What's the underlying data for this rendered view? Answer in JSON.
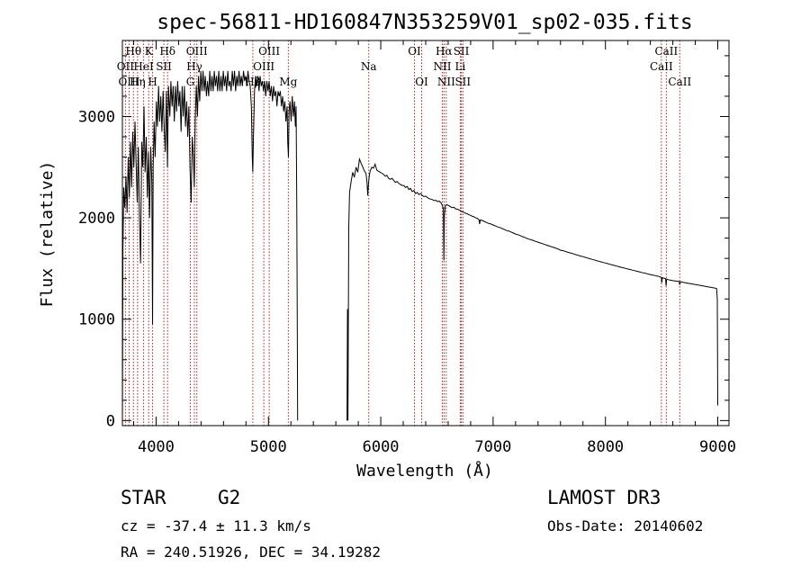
{
  "chart_data": {
    "type": "line",
    "title": "spec-56811-HD160847N353259V01_sp02-035.fits",
    "xlabel": "Wavelength (Å)",
    "ylabel": "Flux (relative)",
    "xlim": [
      3700,
      9100
    ],
    "ylim": [
      -50,
      3750
    ],
    "x_ticks": [
      4000,
      5000,
      6000,
      7000,
      8000,
      9000
    ],
    "y_ticks": [
      0,
      1000,
      2000,
      3000
    ],
    "line_color": "#000000",
    "marker_color": "#b22222",
    "gap": [
      5260,
      5700
    ],
    "spectrum": [
      [
        3700,
        0
      ],
      [
        3705,
        1700
      ],
      [
        3712,
        2300
      ],
      [
        3722,
        2100
      ],
      [
        3732,
        2400
      ],
      [
        3742,
        2050
      ],
      [
        3752,
        2600
      ],
      [
        3762,
        2200
      ],
      [
        3772,
        2750
      ],
      [
        3782,
        2300
      ],
      [
        3792,
        2850
      ],
      [
        3802,
        2500
      ],
      [
        3812,
        2950
      ],
      [
        3822,
        2550
      ],
      [
        3832,
        2150
      ],
      [
        3842,
        2700
      ],
      [
        3852,
        2000
      ],
      [
        3862,
        1550
      ],
      [
        3872,
        2750
      ],
      [
        3882,
        2500
      ],
      [
        3892,
        3100
      ],
      [
        3902,
        2450
      ],
      [
        3912,
        2800
      ],
      [
        3922,
        2200
      ],
      [
        3932,
        2650
      ],
      [
        3942,
        2000
      ],
      [
        3952,
        2700
      ],
      [
        3962,
        2350
      ],
      [
        3968,
        950
      ],
      [
        3974,
        2500
      ],
      [
        3982,
        2950
      ],
      [
        3992,
        2600
      ],
      [
        4002,
        3150
      ],
      [
        4012,
        2900
      ],
      [
        4022,
        3300
      ],
      [
        4032,
        2950
      ],
      [
        4042,
        3200
      ],
      [
        4052,
        2850
      ],
      [
        4062,
        3250
      ],
      [
        4072,
        2900
      ],
      [
        4082,
        2650
      ],
      [
        4092,
        3250
      ],
      [
        4101,
        2500
      ],
      [
        4110,
        3300
      ],
      [
        4122,
        3000
      ],
      [
        4132,
        3350
      ],
      [
        4142,
        3100
      ],
      [
        4152,
        3300
      ],
      [
        4162,
        2950
      ],
      [
        4172,
        3300
      ],
      [
        4182,
        3050
      ],
      [
        4192,
        3350
      ],
      [
        4202,
        3100
      ],
      [
        4212,
        3250
      ],
      [
        4222,
        2850
      ],
      [
        4232,
        3300
      ],
      [
        4242,
        3000
      ],
      [
        4252,
        3300
      ],
      [
        4262,
        2900
      ],
      [
        4272,
        3150
      ],
      [
        4282,
        2800
      ],
      [
        4292,
        3100
      ],
      [
        4302,
        2500
      ],
      [
        4312,
        2150
      ],
      [
        4322,
        2800
      ],
      [
        4332,
        2600
      ],
      [
        4340,
        2300
      ],
      [
        4348,
        2950
      ],
      [
        4358,
        3300
      ],
      [
        4368,
        3000
      ],
      [
        4378,
        3400
      ],
      [
        4388,
        3150
      ],
      [
        4398,
        3450
      ],
      [
        4408,
        3250
      ],
      [
        4418,
        3450
      ],
      [
        4428,
        3250
      ],
      [
        4438,
        3400
      ],
      [
        4448,
        3200
      ],
      [
        4458,
        3350
      ],
      [
        4468,
        3200
      ],
      [
        4478,
        3450
      ],
      [
        4488,
        3250
      ],
      [
        4498,
        3400
      ],
      [
        4508,
        3250
      ],
      [
        4518,
        3450
      ],
      [
        4528,
        3300
      ],
      [
        4538,
        3400
      ],
      [
        4548,
        3250
      ],
      [
        4558,
        3450
      ],
      [
        4568,
        3250
      ],
      [
        4578,
        3400
      ],
      [
        4588,
        3250
      ],
      [
        4598,
        3450
      ],
      [
        4608,
        3300
      ],
      [
        4618,
        3400
      ],
      [
        4628,
        3250
      ],
      [
        4638,
        3450
      ],
      [
        4648,
        3300
      ],
      [
        4658,
        3350
      ],
      [
        4668,
        3250
      ],
      [
        4678,
        3450
      ],
      [
        4688,
        3300
      ],
      [
        4698,
        3450
      ],
      [
        4708,
        3250
      ],
      [
        4718,
        3400
      ],
      [
        4728,
        3300
      ],
      [
        4738,
        3450
      ],
      [
        4748,
        3300
      ],
      [
        4758,
        3400
      ],
      [
        4768,
        3300
      ],
      [
        4778,
        3450
      ],
      [
        4788,
        3350
      ],
      [
        4798,
        3400
      ],
      [
        4808,
        3300
      ],
      [
        4818,
        3450
      ],
      [
        4828,
        3350
      ],
      [
        4838,
        3300
      ],
      [
        4848,
        3100
      ],
      [
        4856,
        2600
      ],
      [
        4861,
        2450
      ],
      [
        4866,
        2750
      ],
      [
        4876,
        3250
      ],
      [
        4886,
        3400
      ],
      [
        4896,
        3300
      ],
      [
        4906,
        3400
      ],
      [
        4916,
        3250
      ],
      [
        4926,
        3400
      ],
      [
        4936,
        3300
      ],
      [
        4946,
        3350
      ],
      [
        4956,
        3250
      ],
      [
        4966,
        3350
      ],
      [
        4976,
        3200
      ],
      [
        4986,
        3350
      ],
      [
        4996,
        3250
      ],
      [
        5006,
        3350
      ],
      [
        5016,
        3200
      ],
      [
        5026,
        3300
      ],
      [
        5036,
        3150
      ],
      [
        5046,
        3300
      ],
      [
        5056,
        3200
      ],
      [
        5066,
        3250
      ],
      [
        5076,
        3100
      ],
      [
        5086,
        3250
      ],
      [
        5096,
        3200
      ],
      [
        5106,
        3250
      ],
      [
        5116,
        3100
      ],
      [
        5126,
        3200
      ],
      [
        5136,
        3050
      ],
      [
        5146,
        3150
      ],
      [
        5156,
        2950
      ],
      [
        5166,
        3100
      ],
      [
        5172,
        2750
      ],
      [
        5178,
        2600
      ],
      [
        5184,
        3050
      ],
      [
        5192,
        3150
      ],
      [
        5202,
        2950
      ],
      [
        5212,
        3200
      ],
      [
        5222,
        3000
      ],
      [
        5232,
        3150
      ],
      [
        5240,
        2900
      ],
      [
        5246,
        3100
      ],
      [
        5252,
        2200
      ],
      [
        5256,
        1200
      ],
      [
        5260,
        0
      ],
      [
        5700,
        0
      ],
      [
        5704,
        1100
      ],
      [
        5708,
        0
      ],
      [
        5715,
        1900
      ],
      [
        5722,
        2250
      ],
      [
        5735,
        2350
      ],
      [
        5750,
        2450
      ],
      [
        5765,
        2400
      ],
      [
        5780,
        2500
      ],
      [
        5795,
        2450
      ],
      [
        5810,
        2580
      ],
      [
        5825,
        2540
      ],
      [
        5840,
        2500
      ],
      [
        5855,
        2460
      ],
      [
        5868,
        2440
      ],
      [
        5878,
        2350
      ],
      [
        5884,
        2220
      ],
      [
        5890,
        2320
      ],
      [
        5896,
        2400
      ],
      [
        5905,
        2460
      ],
      [
        5920,
        2500
      ],
      [
        5935,
        2490
      ],
      [
        5950,
        2530
      ],
      [
        5965,
        2470
      ],
      [
        5980,
        2460
      ],
      [
        5995,
        2450
      ],
      [
        6010,
        2440
      ],
      [
        6025,
        2430
      ],
      [
        6040,
        2410
      ],
      [
        6055,
        2420
      ],
      [
        6070,
        2390
      ],
      [
        6085,
        2380
      ],
      [
        6100,
        2390
      ],
      [
        6115,
        2370
      ],
      [
        6130,
        2350
      ],
      [
        6145,
        2360
      ],
      [
        6160,
        2340
      ],
      [
        6175,
        2330
      ],
      [
        6190,
        2320
      ],
      [
        6205,
        2320
      ],
      [
        6220,
        2300
      ],
      [
        6235,
        2310
      ],
      [
        6250,
        2280
      ],
      [
        6265,
        2290
      ],
      [
        6280,
        2260
      ],
      [
        6295,
        2270
      ],
      [
        6310,
        2240
      ],
      [
        6325,
        2250
      ],
      [
        6340,
        2230
      ],
      [
        6355,
        2240
      ],
      [
        6370,
        2220
      ],
      [
        6385,
        2210
      ],
      [
        6400,
        2215
      ],
      [
        6415,
        2200
      ],
      [
        6430,
        2190
      ],
      [
        6445,
        2185
      ],
      [
        6460,
        2180
      ],
      [
        6475,
        2170
      ],
      [
        6490,
        2175
      ],
      [
        6505,
        2160
      ],
      [
        6520,
        2165
      ],
      [
        6535,
        2150
      ],
      [
        6550,
        2120
      ],
      [
        6558,
        2080
      ],
      [
        6562,
        1580
      ],
      [
        6566,
        2020
      ],
      [
        6575,
        2120
      ],
      [
        6590,
        2130
      ],
      [
        6605,
        2120
      ],
      [
        6620,
        2110
      ],
      [
        6635,
        2100
      ],
      [
        6650,
        2105
      ],
      [
        6665,
        2090
      ],
      [
        6680,
        2085
      ],
      [
        6695,
        2080
      ],
      [
        6710,
        2070
      ],
      [
        6725,
        2060
      ],
      [
        6740,
        2055
      ],
      [
        6755,
        2045
      ],
      [
        6770,
        2040
      ],
      [
        6785,
        2030
      ],
      [
        6800,
        2025
      ],
      [
        6815,
        2015
      ],
      [
        6830,
        2010
      ],
      [
        6845,
        2000
      ],
      [
        6860,
        1995
      ],
      [
        6875,
        1980
      ],
      [
        6880,
        1940
      ],
      [
        6886,
        1980
      ],
      [
        6900,
        1975
      ],
      [
        6920,
        1965
      ],
      [
        6940,
        1955
      ],
      [
        6960,
        1945
      ],
      [
        6980,
        1940
      ],
      [
        7000,
        1930
      ],
      [
        7020,
        1920
      ],
      [
        7040,
        1910
      ],
      [
        7060,
        1905
      ],
      [
        7080,
        1895
      ],
      [
        7100,
        1885
      ],
      [
        7120,
        1875
      ],
      [
        7140,
        1870
      ],
      [
        7160,
        1860
      ],
      [
        7180,
        1850
      ],
      [
        7200,
        1840
      ],
      [
        7220,
        1835
      ],
      [
        7240,
        1825
      ],
      [
        7260,
        1815
      ],
      [
        7280,
        1808
      ],
      [
        7300,
        1798
      ],
      [
        7320,
        1790
      ],
      [
        7340,
        1783
      ],
      [
        7360,
        1775
      ],
      [
        7380,
        1767
      ],
      [
        7400,
        1760
      ],
      [
        7420,
        1752
      ],
      [
        7440,
        1745
      ],
      [
        7460,
        1737
      ],
      [
        7480,
        1730
      ],
      [
        7500,
        1722
      ],
      [
        7520,
        1715
      ],
      [
        7540,
        1708
      ],
      [
        7560,
        1700
      ],
      [
        7580,
        1692
      ],
      [
        7600,
        1680
      ],
      [
        7620,
        1677
      ],
      [
        7640,
        1670
      ],
      [
        7660,
        1663
      ],
      [
        7680,
        1656
      ],
      [
        7700,
        1650
      ],
      [
        7720,
        1643
      ],
      [
        7740,
        1636
      ],
      [
        7760,
        1630
      ],
      [
        7780,
        1623
      ],
      [
        7800,
        1617
      ],
      [
        7820,
        1610
      ],
      [
        7840,
        1604
      ],
      [
        7860,
        1597
      ],
      [
        7880,
        1591
      ],
      [
        7900,
        1585
      ],
      [
        7920,
        1578
      ],
      [
        7940,
        1572
      ],
      [
        7960,
        1566
      ],
      [
        7980,
        1560
      ],
      [
        8000,
        1554
      ],
      [
        8020,
        1548
      ],
      [
        8040,
        1542
      ],
      [
        8060,
        1536
      ],
      [
        8080,
        1530
      ],
      [
        8100,
        1524
      ],
      [
        8120,
        1518
      ],
      [
        8140,
        1512
      ],
      [
        8160,
        1507
      ],
      [
        8180,
        1501
      ],
      [
        8200,
        1495
      ],
      [
        8220,
        1490
      ],
      [
        8240,
        1484
      ],
      [
        8260,
        1479
      ],
      [
        8280,
        1473
      ],
      [
        8300,
        1468
      ],
      [
        8320,
        1462
      ],
      [
        8340,
        1457
      ],
      [
        8360,
        1452
      ],
      [
        8380,
        1446
      ],
      [
        8400,
        1441
      ],
      [
        8420,
        1436
      ],
      [
        8440,
        1431
      ],
      [
        8460,
        1426
      ],
      [
        8480,
        1421
      ],
      [
        8498,
        1410
      ],
      [
        8502,
        1360
      ],
      [
        8506,
        1410
      ],
      [
        8520,
        1405
      ],
      [
        8535,
        1400
      ],
      [
        8540,
        1330
      ],
      [
        8545,
        1395
      ],
      [
        8560,
        1390
      ],
      [
        8580,
        1385
      ],
      [
        8600,
        1380
      ],
      [
        8620,
        1378
      ],
      [
        8640,
        1375
      ],
      [
        8655,
        1372
      ],
      [
        8662,
        1340
      ],
      [
        8668,
        1370
      ],
      [
        8690,
        1365
      ],
      [
        8710,
        1360
      ],
      [
        8730,
        1356
      ],
      [
        8750,
        1352
      ],
      [
        8770,
        1348
      ],
      [
        8790,
        1344
      ],
      [
        8810,
        1340
      ],
      [
        8830,
        1336
      ],
      [
        8850,
        1332
      ],
      [
        8870,
        1328
      ],
      [
        8890,
        1324
      ],
      [
        8910,
        1320
      ],
      [
        8930,
        1316
      ],
      [
        8950,
        1312
      ],
      [
        8970,
        1308
      ],
      [
        8990,
        1302
      ],
      [
        8996,
        1200
      ],
      [
        8998,
        600
      ],
      [
        9000,
        150
      ]
    ],
    "lines": [
      {
        "name": "Hθ",
        "wl": 3798,
        "row": 0
      },
      {
        "name": "OII",
        "wl": 3727,
        "row": 1
      },
      {
        "name": "OIII",
        "wl": 3760,
        "row": 2
      },
      {
        "name": "K",
        "wl": 3934,
        "row": 0
      },
      {
        "name": "HeI",
        "wl": 3889,
        "row": 1
      },
      {
        "name": "Hη",
        "wl": 3835,
        "row": 2
      },
      {
        "name": "SII",
        "wl": 4069,
        "row": 1
      },
      {
        "name": "H",
        "wl": 3969,
        "row": 2
      },
      {
        "name": "Hδ",
        "wl": 4102,
        "row": 0
      },
      {
        "name": "OIII",
        "wl": 4363,
        "row": 0
      },
      {
        "name": "Hγ",
        "wl": 4341,
        "row": 1
      },
      {
        "name": "G",
        "wl": 4305,
        "row": 2
      },
      {
        "name": "OIII",
        "wl": 5007,
        "row": 0
      },
      {
        "name": "OIII",
        "wl": 4959,
        "row": 1
      },
      {
        "name": "Hβ",
        "wl": 4861,
        "row": 2
      },
      {
        "name": "Mg",
        "wl": 5177,
        "row": 2
      },
      {
        "name": "Na",
        "wl": 5893,
        "row": 1
      },
      {
        "name": "OI",
        "wl": 6300,
        "row": 0
      },
      {
        "name": "OI",
        "wl": 6364,
        "row": 2
      },
      {
        "name": "Hα",
        "wl": 6563,
        "row": 0
      },
      {
        "name": "NII",
        "wl": 6548,
        "row": 1
      },
      {
        "name": "NII",
        "wl": 6583,
        "row": 2
      },
      {
        "name": "SII",
        "wl": 6717,
        "row": 0
      },
      {
        "name": "Li",
        "wl": 6708,
        "row": 1
      },
      {
        "name": "SII",
        "wl": 6731,
        "row": 2
      },
      {
        "name": "CaII",
        "wl": 8542,
        "row": 0
      },
      {
        "name": "CaII",
        "wl": 8498,
        "row": 1
      },
      {
        "name": "CaII",
        "wl": 8662,
        "row": 2
      }
    ]
  },
  "info": {
    "object_class": "STAR",
    "subclass": "G2",
    "cz": "cz = -37.4 ± 11.3 km/s",
    "radec": "RA = 240.51926, DEC =  34.19282",
    "survey": "LAMOST DR3",
    "obs_date": "Obs-Date: 20140602"
  }
}
